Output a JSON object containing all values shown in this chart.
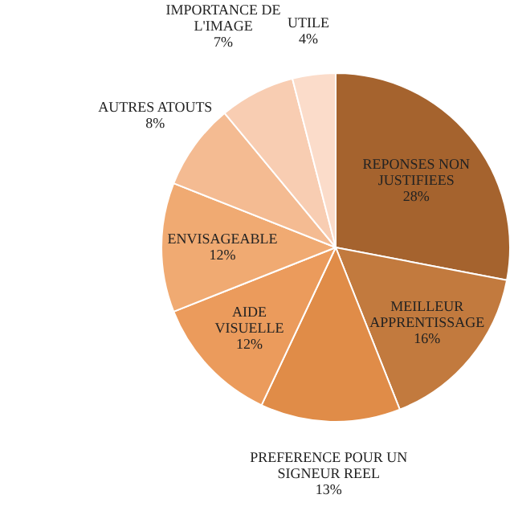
{
  "chart_data": {
    "type": "pie",
    "categories": [
      "REPONSES NON JUSTIFIEES",
      "MEILLEUR APPRENTISSAGE",
      "PREFERENCE POUR UN SIGNEUR REEL",
      "AIDE VISUELLE",
      "ENVISAGEABLE",
      "AUTRES ATOUTS",
      "IMPORTANCE DE L'IMAGE",
      "UTILE"
    ],
    "values": [
      28,
      16,
      13,
      12,
      12,
      8,
      7,
      4
    ],
    "value_labels": [
      "28%",
      "16%",
      "13%",
      "12%",
      "12%",
      "8%",
      "7%",
      "4%"
    ],
    "colors": [
      "#a5632e",
      "#c27a3e",
      "#e08c48",
      "#eb9b5c",
      "#f0aa72",
      "#f4bb92",
      "#f8cdb2",
      "#fbdcca"
    ],
    "legend": false
  }
}
